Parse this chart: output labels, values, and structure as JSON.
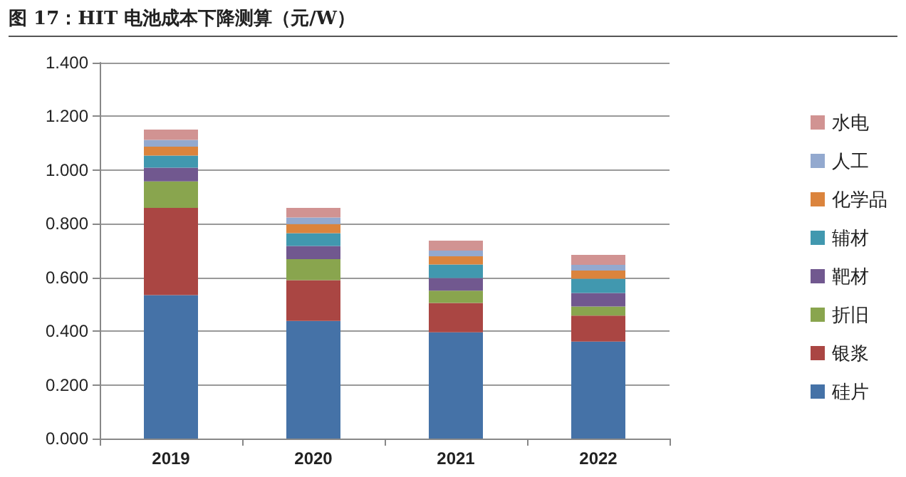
{
  "chart_data": {
    "type": "bar",
    "title": "图 17：HIT 电池成本下降测算（元/W）",
    "stacked": true,
    "categories": [
      "2019",
      "2020",
      "2021",
      "2022"
    ],
    "series": [
      {
        "name": "硅片",
        "color": "#4572a7",
        "values": [
          0.534,
          0.438,
          0.396,
          0.361
        ]
      },
      {
        "name": "银浆",
        "color": "#aa4643",
        "values": [
          0.325,
          0.152,
          0.109,
          0.097
        ]
      },
      {
        "name": "折旧",
        "color": "#89a54e",
        "values": [
          0.099,
          0.078,
          0.046,
          0.034
        ]
      },
      {
        "name": "靶材",
        "color": "#71588f",
        "values": [
          0.051,
          0.049,
          0.047,
          0.05
        ]
      },
      {
        "name": "辅材",
        "color": "#4198af",
        "values": [
          0.045,
          0.048,
          0.05,
          0.053
        ]
      },
      {
        "name": "化学品",
        "color": "#db843d",
        "values": [
          0.033,
          0.034,
          0.031,
          0.031
        ]
      },
      {
        "name": "人工",
        "color": "#93a9cf",
        "values": [
          0.025,
          0.024,
          0.021,
          0.021
        ]
      },
      {
        "name": "水电",
        "color": "#d19392",
        "values": [
          0.039,
          0.036,
          0.037,
          0.037
        ]
      }
    ],
    "ylim": [
      0,
      1.4
    ],
    "yticks": [
      {
        "value": 0,
        "label": "0.000"
      },
      {
        "value": 0.2,
        "label": "0.200"
      },
      {
        "value": 0.4,
        "label": "0.400"
      },
      {
        "value": 0.6,
        "label": "0.600"
      },
      {
        "value": 0.8,
        "label": "0.800"
      },
      {
        "value": 1.0,
        "label": "1.000"
      },
      {
        "value": 1.2,
        "label": "1.200"
      },
      {
        "value": 1.4,
        "label": "1.400"
      }
    ],
    "grid": "y",
    "legend": "right"
  }
}
